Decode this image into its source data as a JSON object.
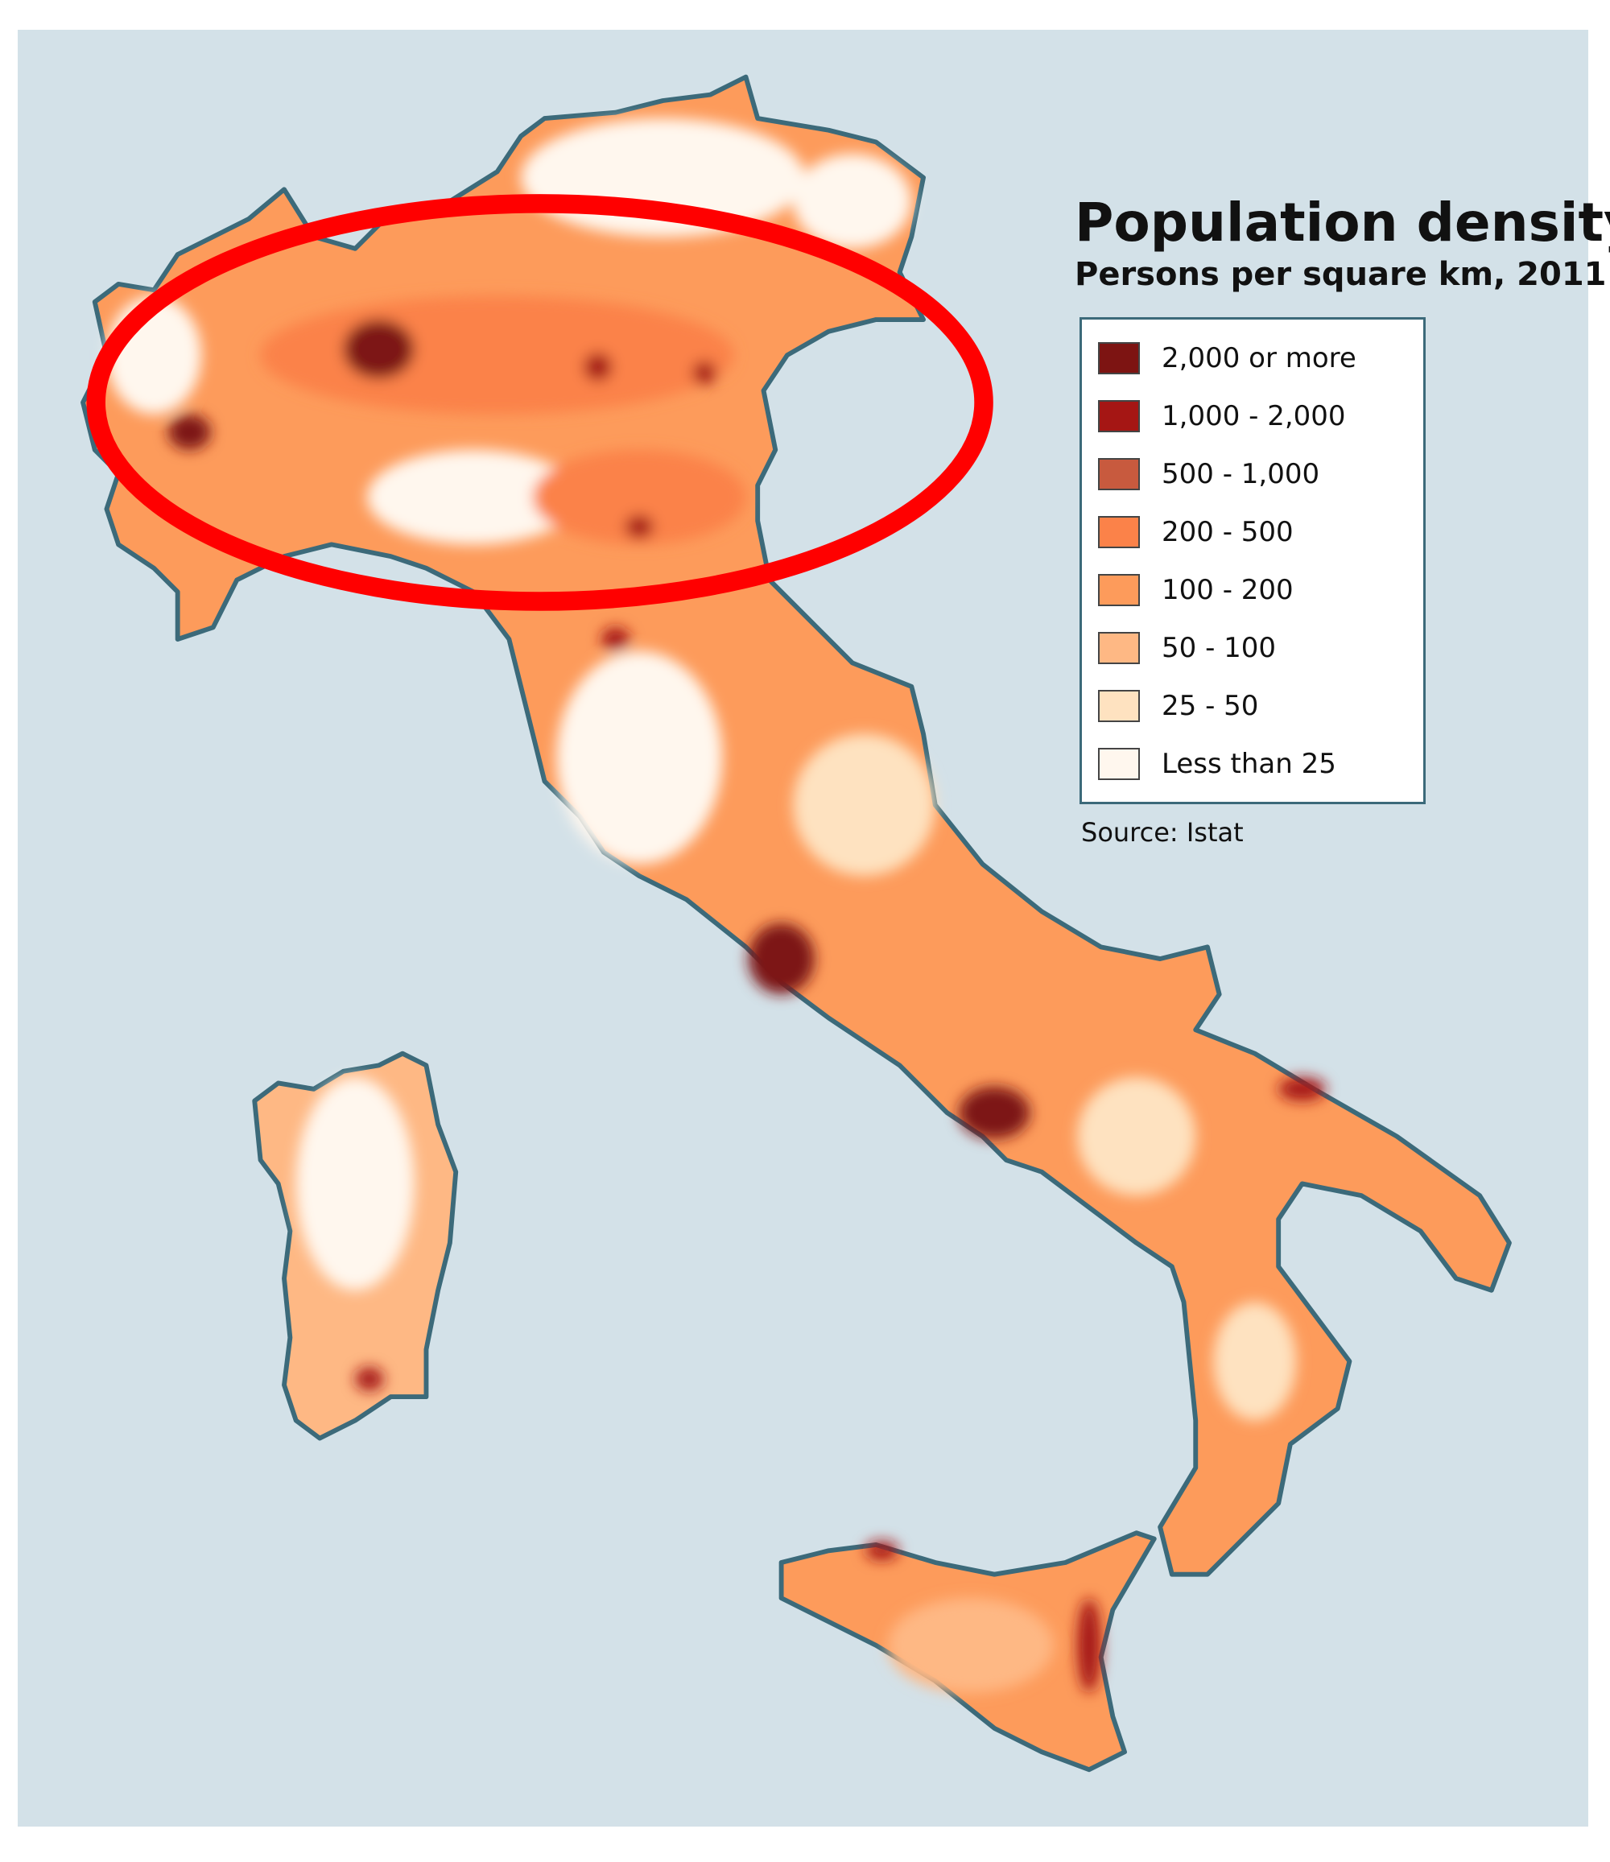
{
  "title": "Population density",
  "subtitle": "Persons per square km, 2011",
  "legend": [
    {
      "label": "2,000 or more",
      "color": "#7d1412"
    },
    {
      "label": "1,000 - 2,000",
      "color": "#a51614"
    },
    {
      "label": "500 - 1,000",
      "color": "#c85a3e"
    },
    {
      "label": "200 - 500",
      "color": "#fb8249"
    },
    {
      "label": "100 - 200",
      "color": "#fd9b5b"
    },
    {
      "label": "50 - 100",
      "color": "#feb884"
    },
    {
      "label": "25 - 50",
      "color": "#fee2c0"
    },
    {
      "label": "Less than 25",
      "color": "#fff7ee"
    }
  ],
  "source": "Source: Istat",
  "colors": {
    "sea": "#d3e1e8",
    "coast": "#3c6a7a",
    "highlight_ellipse": "#ff0000"
  },
  "annotation": {
    "type": "ellipse",
    "region": "Northern Italy"
  }
}
